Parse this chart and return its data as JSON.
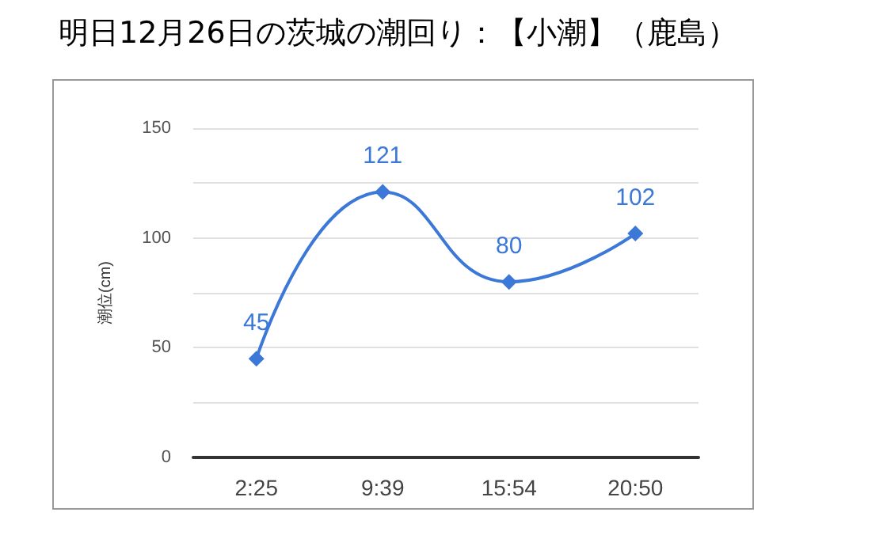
{
  "chart_data": {
    "type": "line",
    "title": "明日12月26日の茨城の潮回り：【小潮】（鹿島）",
    "ylabel": "潮位(cm)",
    "categories": [
      "2:25",
      "9:39",
      "15:54",
      "20:50"
    ],
    "series": [
      {
        "color": "#3c78d8",
        "values": [
          45,
          121,
          80,
          102
        ]
      }
    ],
    "ylim": [
      0,
      150
    ],
    "yticks": [
      0,
      {
        "value": 25,
        "label": null
      },
      50,
      {
        "value": 75,
        "label": null
      },
      100,
      {
        "value": 125,
        "label": null
      },
      150
    ],
    "grid": "y",
    "marker": "diamond",
    "line_style": "solid",
    "data_labels": true
  }
}
